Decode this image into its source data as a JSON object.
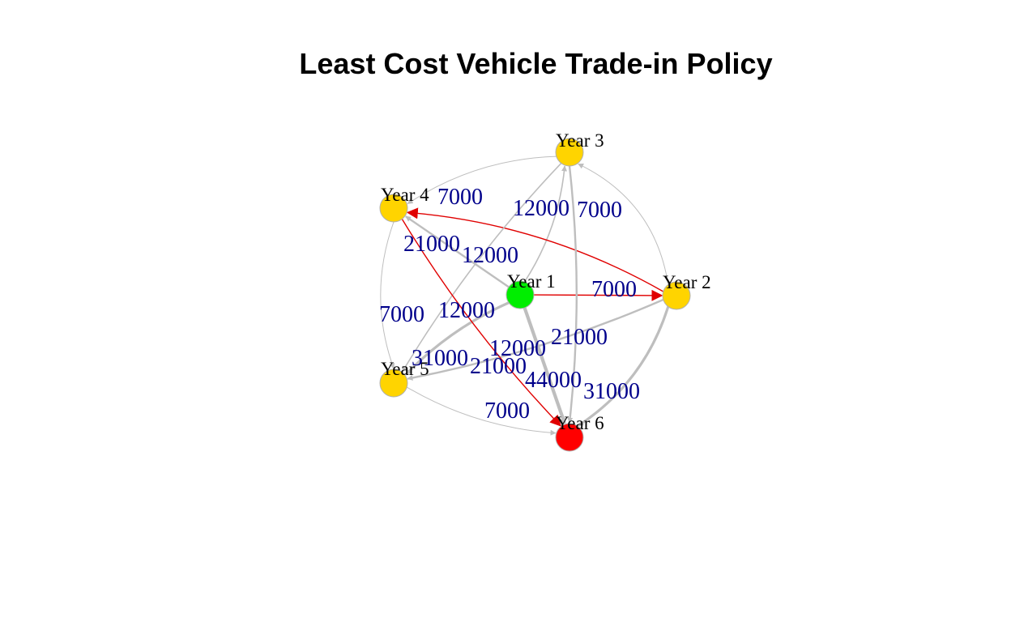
{
  "title": "Least Cost Vehicle Trade-in Policy",
  "colors": {
    "start": "#00ee00",
    "intermediate": "#ffd400",
    "end": "#ff0000",
    "edge_default": "#bebebe",
    "edge_optimal": "#e00000",
    "edge_label": "#00008b",
    "node_border": "#b0b0b0"
  },
  "nodes": [
    {
      "id": "y1",
      "label": "Year 1",
      "role": "start"
    },
    {
      "id": "y2",
      "label": "Year 2",
      "role": "intermediate"
    },
    {
      "id": "y3",
      "label": "Year 3",
      "role": "intermediate"
    },
    {
      "id": "y4",
      "label": "Year 4",
      "role": "intermediate"
    },
    {
      "id": "y5",
      "label": "Year 5",
      "role": "intermediate"
    },
    {
      "id": "y6",
      "label": "Year 6",
      "role": "end"
    }
  ],
  "edges": [
    {
      "from": "y1",
      "to": "y2",
      "label": "7000",
      "optimal": true
    },
    {
      "from": "y1",
      "to": "y3",
      "label": "12000",
      "optimal": false
    },
    {
      "from": "y1",
      "to": "y4",
      "label": "21000",
      "optimal": false
    },
    {
      "from": "y1",
      "to": "y5",
      "label": "31000",
      "optimal": false
    },
    {
      "from": "y1",
      "to": "y6",
      "label": "44000",
      "optimal": false
    },
    {
      "from": "y2",
      "to": "y3",
      "label": "7000",
      "optimal": false
    },
    {
      "from": "y2",
      "to": "y4",
      "label": "12000",
      "optimal": true
    },
    {
      "from": "y2",
      "to": "y5",
      "label": "21000",
      "optimal": false
    },
    {
      "from": "y2",
      "to": "y6",
      "label": "31000",
      "optimal": false
    },
    {
      "from": "y3",
      "to": "y4",
      "label": "7000",
      "optimal": false
    },
    {
      "from": "y3",
      "to": "y5",
      "label": "12000",
      "optimal": false
    },
    {
      "from": "y3",
      "to": "y6",
      "label": "21000",
      "optimal": false
    },
    {
      "from": "y4",
      "to": "y5",
      "label": "7000",
      "optimal": false
    },
    {
      "from": "y4",
      "to": "y6",
      "label": "12000",
      "optimal": true
    },
    {
      "from": "y5",
      "to": "y6",
      "label": "7000",
      "optimal": false
    }
  ]
}
